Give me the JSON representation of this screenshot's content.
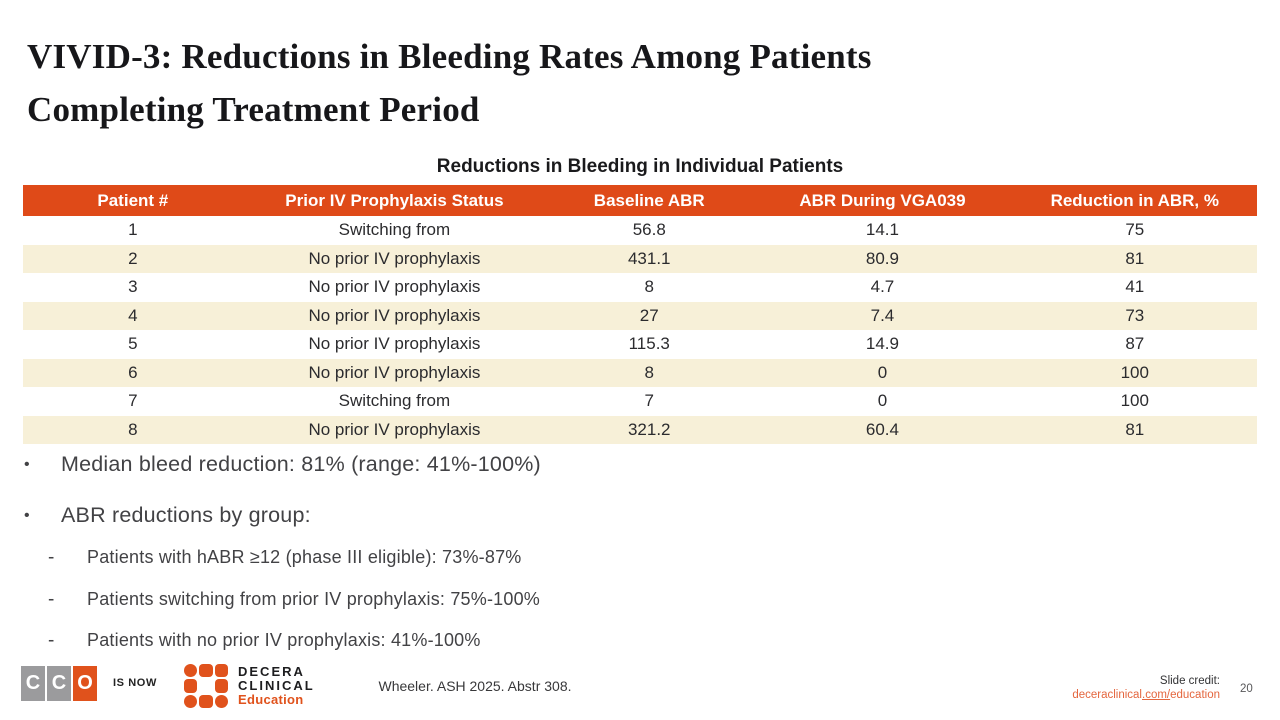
{
  "slide": {
    "title_line1": "VIVID-3: Reductions in Bleeding Rates Among Patients",
    "title_line2": "Completing Treatment Period",
    "page_number": "20"
  },
  "table": {
    "title": "Reductions in Bleeding in Individual Patients",
    "columns": [
      "Patient #",
      "Prior IV Prophylaxis Status",
      "Baseline ABR",
      "ABR During VGA039",
      "Reduction in ABR, %"
    ],
    "rows": [
      [
        "1",
        "Switching from",
        "56.8",
        "14.1",
        "75"
      ],
      [
        "2",
        "No prior IV prophylaxis",
        "431.1",
        "80.9",
        "81"
      ],
      [
        "3",
        "No prior IV prophylaxis",
        "8",
        "4.7",
        "41"
      ],
      [
        "4",
        "No prior IV prophylaxis",
        "27",
        "7.4",
        "73"
      ],
      [
        "5",
        "No prior IV prophylaxis",
        "115.3",
        "14.9",
        "87"
      ],
      [
        "6",
        "No prior IV prophylaxis",
        "8",
        "0",
        "100"
      ],
      [
        "7",
        "Switching from",
        "7",
        "0",
        "100"
      ],
      [
        "8",
        "No prior IV prophylaxis",
        "321.2",
        "60.4",
        "81"
      ]
    ]
  },
  "bullets": {
    "marker": "•",
    "sub_marker": "-",
    "item1": "Median bleed reduction: 81% (range: 41%-100%)",
    "item2": "ABR reductions by group:",
    "sub1": "Patients with hABR ≥12 (phase III eligible): 73%-87%",
    "sub2": "Patients switching from prior IV prophylaxis: 75%-100%",
    "sub3": "Patients with no prior IV prophylaxis: 41%-100%"
  },
  "footer": {
    "cco_letters": [
      "C",
      "C",
      "O"
    ],
    "is_now": "IS NOW",
    "decera_line1": "DECERA",
    "decera_line2": "CLINICAL",
    "decera_line3": "Education",
    "citation": "Wheeler. ASH 2025. Abstr 308.",
    "slide_credit_label": "Slide credit:",
    "link_parts": [
      "deceraclinical",
      ".com/",
      "education"
    ]
  },
  "colors": {
    "accent_orange": "#df4a18",
    "row_stripe": "#f7f0d8",
    "link_orange": "#e4663e",
    "logo_gray": "#9b9b9d"
  }
}
